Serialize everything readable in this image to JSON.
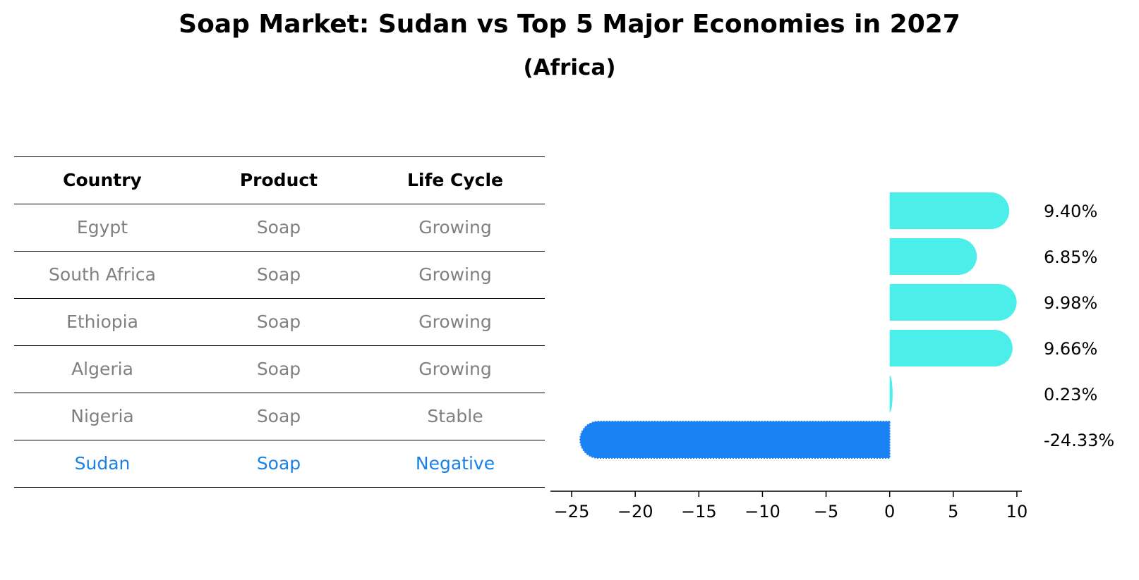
{
  "title": "Soap Market: Sudan vs Top 5 Major Economies in 2027",
  "subtitle": "(Africa)",
  "table": {
    "headers": [
      "Country",
      "Product",
      "Life Cycle"
    ],
    "rows": [
      {
        "country": "Egypt",
        "product": "Soap",
        "life_cycle": "Growing"
      },
      {
        "country": "South Africa",
        "product": "Soap",
        "life_cycle": "Growing"
      },
      {
        "country": "Ethiopia",
        "product": "Soap",
        "life_cycle": "Growing"
      },
      {
        "country": "Algeria",
        "product": "Soap",
        "life_cycle": "Growing"
      },
      {
        "country": "Nigeria",
        "product": "Soap",
        "life_cycle": "Stable"
      },
      {
        "country": "Sudan",
        "product": "Soap",
        "life_cycle": "Negative"
      }
    ]
  },
  "colors": {
    "positive_bar": "#4ceee9",
    "negative_bar": "#1a82f2",
    "highlight_text": "#1a82e6",
    "muted_text": "#808080"
  },
  "chart_data": {
    "type": "bar",
    "orientation": "horizontal",
    "categories": [
      "Egypt",
      "South Africa",
      "Ethiopia",
      "Algeria",
      "Nigeria",
      "Sudan"
    ],
    "values": [
      9.4,
      6.85,
      9.98,
      9.66,
      0.23,
      -24.33
    ],
    "data_labels": [
      "9.40%",
      "6.85%",
      "9.98%",
      "9.66%",
      "0.23%",
      "-24.33%"
    ],
    "xlim": [
      -26,
      11.5
    ],
    "xticks": [
      -25,
      -20,
      -15,
      -10,
      -5,
      0,
      5,
      10
    ],
    "xtick_labels": [
      "−25",
      "−20",
      "−15",
      "−10",
      "−5",
      "0",
      "5",
      "10"
    ],
    "grid": false
  }
}
